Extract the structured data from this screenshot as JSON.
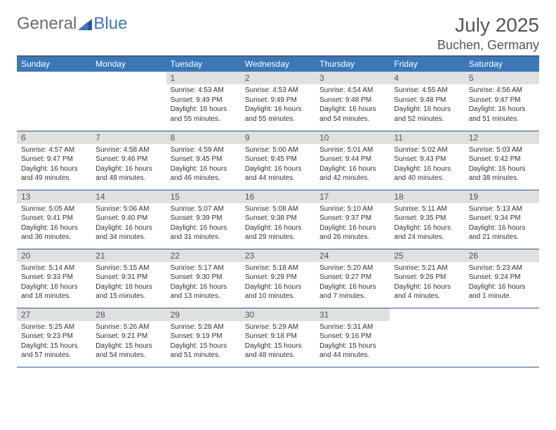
{
  "brand": {
    "part1": "General",
    "part2": "Blue"
  },
  "title": {
    "month": "July 2025",
    "location": "Buchen, Germany"
  },
  "colors": {
    "header_bg": "#3a78b8",
    "header_text": "#ffffff",
    "daynum_bg": "#e0e0e0",
    "daynum_text": "#555555",
    "row_border": "#2a5a8a",
    "body_text": "#333333",
    "logo_gray": "#6a6a6a",
    "logo_blue": "#3a78b8"
  },
  "weekdays": [
    "Sunday",
    "Monday",
    "Tuesday",
    "Wednesday",
    "Thursday",
    "Friday",
    "Saturday"
  ],
  "weeks": [
    [
      null,
      null,
      {
        "num": "1",
        "sunrise": "Sunrise: 4:53 AM",
        "sunset": "Sunset: 9:49 PM",
        "daylight": "Daylight: 16 hours and 55 minutes."
      },
      {
        "num": "2",
        "sunrise": "Sunrise: 4:53 AM",
        "sunset": "Sunset: 9:49 PM",
        "daylight": "Daylight: 16 hours and 55 minutes."
      },
      {
        "num": "3",
        "sunrise": "Sunrise: 4:54 AM",
        "sunset": "Sunset: 9:48 PM",
        "daylight": "Daylight: 16 hours and 54 minutes."
      },
      {
        "num": "4",
        "sunrise": "Sunrise: 4:55 AM",
        "sunset": "Sunset: 9:48 PM",
        "daylight": "Daylight: 16 hours and 52 minutes."
      },
      {
        "num": "5",
        "sunrise": "Sunrise: 4:56 AM",
        "sunset": "Sunset: 9:47 PM",
        "daylight": "Daylight: 16 hours and 51 minutes."
      }
    ],
    [
      {
        "num": "6",
        "sunrise": "Sunrise: 4:57 AM",
        "sunset": "Sunset: 9:47 PM",
        "daylight": "Daylight: 16 hours and 49 minutes."
      },
      {
        "num": "7",
        "sunrise": "Sunrise: 4:58 AM",
        "sunset": "Sunset: 9:46 PM",
        "daylight": "Daylight: 16 hours and 48 minutes."
      },
      {
        "num": "8",
        "sunrise": "Sunrise: 4:59 AM",
        "sunset": "Sunset: 9:45 PM",
        "daylight": "Daylight: 16 hours and 46 minutes."
      },
      {
        "num": "9",
        "sunrise": "Sunrise: 5:00 AM",
        "sunset": "Sunset: 9:45 PM",
        "daylight": "Daylight: 16 hours and 44 minutes."
      },
      {
        "num": "10",
        "sunrise": "Sunrise: 5:01 AM",
        "sunset": "Sunset: 9:44 PM",
        "daylight": "Daylight: 16 hours and 42 minutes."
      },
      {
        "num": "11",
        "sunrise": "Sunrise: 5:02 AM",
        "sunset": "Sunset: 9:43 PM",
        "daylight": "Daylight: 16 hours and 40 minutes."
      },
      {
        "num": "12",
        "sunrise": "Sunrise: 5:03 AM",
        "sunset": "Sunset: 9:42 PM",
        "daylight": "Daylight: 16 hours and 38 minutes."
      }
    ],
    [
      {
        "num": "13",
        "sunrise": "Sunrise: 5:05 AM",
        "sunset": "Sunset: 9:41 PM",
        "daylight": "Daylight: 16 hours and 36 minutes."
      },
      {
        "num": "14",
        "sunrise": "Sunrise: 5:06 AM",
        "sunset": "Sunset: 9:40 PM",
        "daylight": "Daylight: 16 hours and 34 minutes."
      },
      {
        "num": "15",
        "sunrise": "Sunrise: 5:07 AM",
        "sunset": "Sunset: 9:39 PM",
        "daylight": "Daylight: 16 hours and 31 minutes."
      },
      {
        "num": "16",
        "sunrise": "Sunrise: 5:08 AM",
        "sunset": "Sunset: 9:38 PM",
        "daylight": "Daylight: 16 hours and 29 minutes."
      },
      {
        "num": "17",
        "sunrise": "Sunrise: 5:10 AM",
        "sunset": "Sunset: 9:37 PM",
        "daylight": "Daylight: 16 hours and 26 minutes."
      },
      {
        "num": "18",
        "sunrise": "Sunrise: 5:11 AM",
        "sunset": "Sunset: 9:35 PM",
        "daylight": "Daylight: 16 hours and 24 minutes."
      },
      {
        "num": "19",
        "sunrise": "Sunrise: 5:13 AM",
        "sunset": "Sunset: 9:34 PM",
        "daylight": "Daylight: 16 hours and 21 minutes."
      }
    ],
    [
      {
        "num": "20",
        "sunrise": "Sunrise: 5:14 AM",
        "sunset": "Sunset: 9:33 PM",
        "daylight": "Daylight: 16 hours and 18 minutes."
      },
      {
        "num": "21",
        "sunrise": "Sunrise: 5:15 AM",
        "sunset": "Sunset: 9:31 PM",
        "daylight": "Daylight: 16 hours and 15 minutes."
      },
      {
        "num": "22",
        "sunrise": "Sunrise: 5:17 AM",
        "sunset": "Sunset: 9:30 PM",
        "daylight": "Daylight: 16 hours and 13 minutes."
      },
      {
        "num": "23",
        "sunrise": "Sunrise: 5:18 AM",
        "sunset": "Sunset: 9:29 PM",
        "daylight": "Daylight: 16 hours and 10 minutes."
      },
      {
        "num": "24",
        "sunrise": "Sunrise: 5:20 AM",
        "sunset": "Sunset: 9:27 PM",
        "daylight": "Daylight: 16 hours and 7 minutes."
      },
      {
        "num": "25",
        "sunrise": "Sunrise: 5:21 AM",
        "sunset": "Sunset: 9:26 PM",
        "daylight": "Daylight: 16 hours and 4 minutes."
      },
      {
        "num": "26",
        "sunrise": "Sunrise: 5:23 AM",
        "sunset": "Sunset: 9:24 PM",
        "daylight": "Daylight: 16 hours and 1 minute."
      }
    ],
    [
      {
        "num": "27",
        "sunrise": "Sunrise: 5:25 AM",
        "sunset": "Sunset: 9:23 PM",
        "daylight": "Daylight: 15 hours and 57 minutes."
      },
      {
        "num": "28",
        "sunrise": "Sunrise: 5:26 AM",
        "sunset": "Sunset: 9:21 PM",
        "daylight": "Daylight: 15 hours and 54 minutes."
      },
      {
        "num": "29",
        "sunrise": "Sunrise: 5:28 AM",
        "sunset": "Sunset: 9:19 PM",
        "daylight": "Daylight: 15 hours and 51 minutes."
      },
      {
        "num": "30",
        "sunrise": "Sunrise: 5:29 AM",
        "sunset": "Sunset: 9:18 PM",
        "daylight": "Daylight: 15 hours and 48 minutes."
      },
      {
        "num": "31",
        "sunrise": "Sunrise: 5:31 AM",
        "sunset": "Sunset: 9:16 PM",
        "daylight": "Daylight: 15 hours and 44 minutes."
      },
      null,
      null
    ]
  ]
}
